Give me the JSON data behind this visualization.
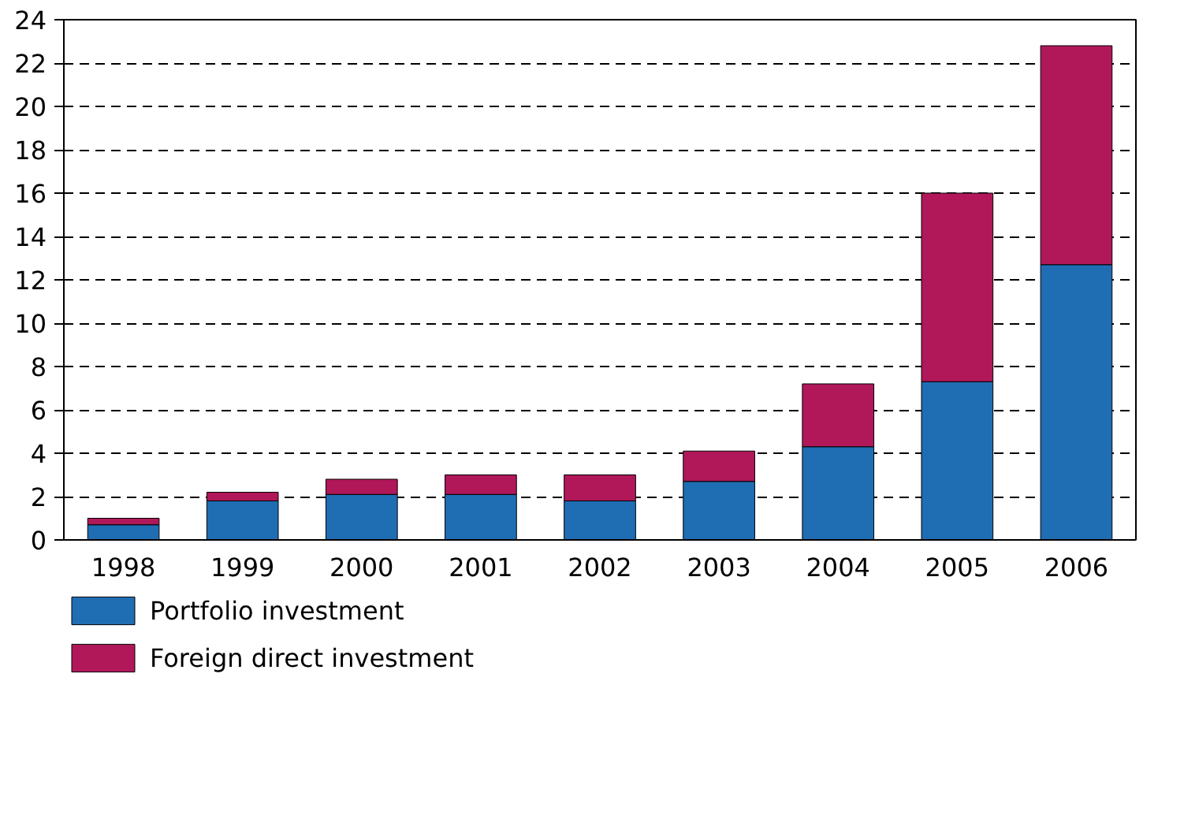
{
  "chart_data": {
    "type": "bar",
    "stacked": true,
    "categories": [
      "1998",
      "1999",
      "2000",
      "2001",
      "2002",
      "2003",
      "2004",
      "2005",
      "2006"
    ],
    "series": [
      {
        "name": "Portfolio investment",
        "color": "#1f6db3",
        "values": [
          0.7,
          1.8,
          2.1,
          2.1,
          1.8,
          2.7,
          4.3,
          7.3,
          12.7
        ]
      },
      {
        "name": "Foreign direct investment",
        "color": "#b0185a",
        "values": [
          0.3,
          0.4,
          0.7,
          0.9,
          1.2,
          1.4,
          2.9,
          8.7,
          10.1
        ]
      }
    ],
    "ylim": [
      0,
      24
    ],
    "yticks": [
      0,
      2,
      4,
      6,
      8,
      10,
      12,
      14,
      16,
      18,
      20,
      22,
      24
    ],
    "grid": "y",
    "legend": "bottom"
  }
}
